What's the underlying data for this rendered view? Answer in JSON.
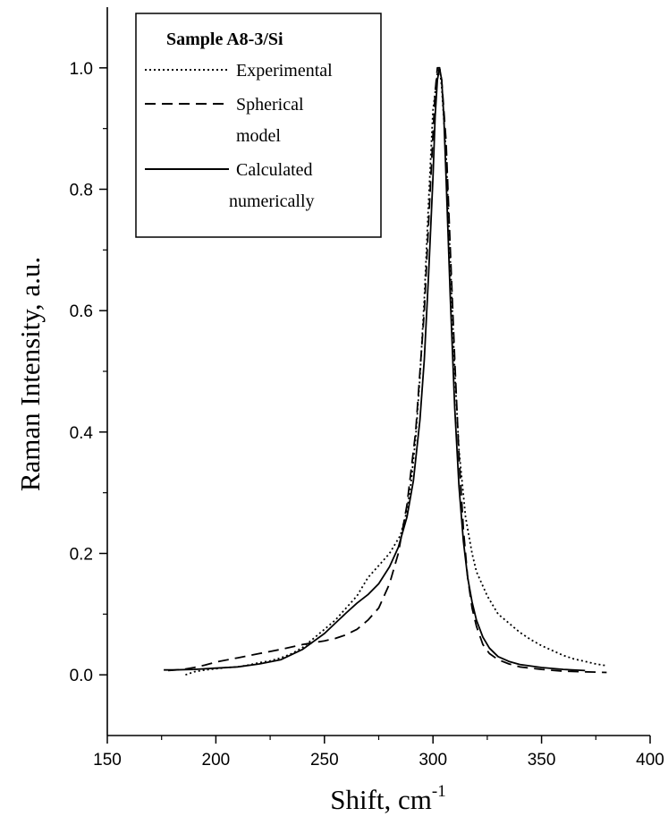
{
  "chart_data": {
    "type": "line",
    "title": "",
    "xlabel": "Shift, cm",
    "xlabel_sup": "-1",
    "ylabel": "Raman Intensity, a.u.",
    "xlim": [
      150,
      400
    ],
    "ylim": [
      -0.1,
      1.1
    ],
    "x_ticks": [
      150,
      200,
      250,
      300,
      350,
      400
    ],
    "x_tick_labels": [
      "150",
      "200",
      "250",
      "300",
      "350",
      "400"
    ],
    "y_ticks": [
      0.0,
      0.2,
      0.4,
      0.6,
      0.8,
      1.0
    ],
    "y_tick_labels": [
      "0.0",
      "0.2",
      "0.4",
      "0.6",
      "0.8",
      "1.0"
    ],
    "grid": false,
    "legend": {
      "placement": "top-left",
      "title": "Sample A8-3/Si",
      "entries": [
        {
          "label_lines": [
            "Experimental"
          ],
          "style": "dotted"
        },
        {
          "label_lines": [
            "Spherical",
            "model"
          ],
          "style": "dashed"
        },
        {
          "label_lines": [
            "Calculated",
            "numerically"
          ],
          "style": "solid"
        }
      ]
    },
    "series": [
      {
        "name": "Experimental",
        "style": "dotted",
        "x": [
          186,
          190,
          195,
          200,
          205,
          210,
          215,
          220,
          225,
          230,
          235,
          240,
          245,
          250,
          255,
          260,
          265,
          270,
          275,
          280,
          285,
          288,
          290,
          292,
          294,
          296,
          298,
          300,
          302,
          303,
          304,
          306,
          308,
          310,
          312,
          315,
          318,
          320,
          325,
          330,
          335,
          340,
          345,
          350,
          355,
          360,
          365,
          370,
          375,
          380
        ],
        "y": [
          0.0,
          0.005,
          0.008,
          0.01,
          0.012,
          0.013,
          0.016,
          0.02,
          0.023,
          0.028,
          0.035,
          0.045,
          0.06,
          0.075,
          0.09,
          0.11,
          0.13,
          0.16,
          0.18,
          0.2,
          0.23,
          0.27,
          0.32,
          0.39,
          0.49,
          0.62,
          0.78,
          0.93,
          0.99,
          1.0,
          0.97,
          0.86,
          0.68,
          0.5,
          0.37,
          0.26,
          0.2,
          0.17,
          0.13,
          0.1,
          0.085,
          0.07,
          0.058,
          0.048,
          0.04,
          0.032,
          0.026,
          0.022,
          0.018,
          0.015
        ]
      },
      {
        "name": "Spherical model",
        "style": "dashed",
        "x": [
          178,
          185,
          190,
          195,
          200,
          210,
          220,
          230,
          240,
          250,
          255,
          260,
          265,
          270,
          275,
          280,
          284,
          288,
          292,
          296,
          299,
          301,
          302,
          303,
          304,
          306,
          308,
          310,
          312,
          314,
          316,
          318,
          320,
          323,
          326,
          330,
          335,
          340,
          350,
          360,
          370,
          380
        ],
        "y": [
          0.007,
          0.009,
          0.012,
          0.016,
          0.021,
          0.028,
          0.035,
          0.042,
          0.05,
          0.056,
          0.06,
          0.066,
          0.075,
          0.09,
          0.11,
          0.15,
          0.2,
          0.28,
          0.4,
          0.6,
          0.82,
          0.96,
          1.0,
          1.0,
          0.98,
          0.88,
          0.7,
          0.52,
          0.36,
          0.24,
          0.16,
          0.11,
          0.08,
          0.05,
          0.035,
          0.025,
          0.018,
          0.013,
          0.009,
          0.006,
          0.005,
          0.004
        ]
      },
      {
        "name": "Calculated numerically",
        "style": "solid",
        "x": [
          176,
          180,
          190,
          200,
          210,
          220,
          230,
          240,
          250,
          255,
          260,
          265,
          270,
          275,
          280,
          284,
          288,
          291,
          294,
          296,
          298,
          300,
          301,
          302,
          303,
          304,
          305,
          306,
          308,
          310,
          312,
          314,
          316,
          318,
          320,
          323,
          326,
          330,
          335,
          340,
          350,
          360,
          370
        ],
        "y": [
          0.008,
          0.008,
          0.009,
          0.011,
          0.013,
          0.018,
          0.025,
          0.042,
          0.068,
          0.085,
          0.102,
          0.118,
          0.132,
          0.15,
          0.178,
          0.21,
          0.26,
          0.32,
          0.42,
          0.52,
          0.66,
          0.82,
          0.92,
          0.98,
          1.0,
          0.98,
          0.92,
          0.82,
          0.62,
          0.44,
          0.31,
          0.22,
          0.16,
          0.12,
          0.09,
          0.062,
          0.044,
          0.03,
          0.022,
          0.017,
          0.012,
          0.009,
          0.007
        ]
      }
    ]
  }
}
